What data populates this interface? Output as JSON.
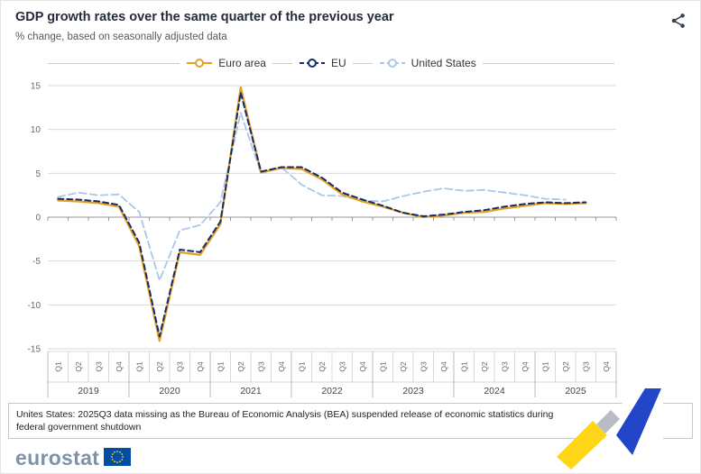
{
  "header": {
    "title": "GDP growth rates over the same quarter of the previous year",
    "subtitle": "% change, based on seasonally adjusted data"
  },
  "icons": {
    "share": "share-icon"
  },
  "chart_data": {
    "type": "line",
    "title": "GDP growth rates over the same quarter of the previous year",
    "ylabel": "% change",
    "ylim": [
      -15,
      15
    ],
    "yticks": [
      15,
      10,
      5,
      0,
      -5,
      -10,
      -15
    ],
    "grid": true,
    "legend_position": "top",
    "years": [
      "2019",
      "2020",
      "2021",
      "2022",
      "2023",
      "2024",
      "2025"
    ],
    "quarters_per_year": [
      "Q1",
      "Q2",
      "Q3",
      "Q4"
    ],
    "series": [
      {
        "name": "Euro area",
        "color": "#E5A024",
        "dash": "solid",
        "width": 2.3,
        "z": 2,
        "values": [
          1.9,
          1.8,
          1.6,
          1.2,
          -3.3,
          -14.1,
          -4.0,
          -4.3,
          -0.8,
          14.8,
          5.1,
          5.6,
          5.5,
          4.3,
          2.6,
          1.8,
          1.2,
          0.5,
          0.0,
          0.2,
          0.5,
          0.6,
          1.0,
          1.3,
          1.6,
          1.5,
          1.6,
          null
        ]
      },
      {
        "name": "EU",
        "color": "#142B66",
        "dash": "dashed",
        "dash_pattern": "6 4",
        "width": 2,
        "z": 3,
        "values": [
          2.1,
          2.0,
          1.8,
          1.4,
          -2.9,
          -13.6,
          -3.7,
          -4.0,
          -0.5,
          14.2,
          5.2,
          5.7,
          5.7,
          4.5,
          2.8,
          2.0,
          1.3,
          0.5,
          0.1,
          0.3,
          0.6,
          0.8,
          1.2,
          1.5,
          1.7,
          1.6,
          1.7,
          null
        ]
      },
      {
        "name": "United States",
        "color": "#ACC6EA",
        "dash": "dashed",
        "dash_pattern": "8 4",
        "width": 1.8,
        "z": 1,
        "values": [
          2.3,
          2.8,
          2.5,
          2.6,
          0.6,
          -7.2,
          -1.5,
          -0.9,
          1.7,
          11.9,
          5.0,
          5.7,
          3.7,
          2.5,
          2.4,
          1.9,
          1.8,
          2.4,
          2.9,
          3.3,
          3.0,
          3.1,
          2.8,
          2.5,
          2.1,
          2.0,
          null,
          null
        ]
      }
    ]
  },
  "footnote": "Unites States: 2025Q3 data missing as the Bureau of Economic Analysis (BEA) suspended release of economic statistics during federal government shutdown",
  "logo": {
    "text": "eurostat"
  }
}
